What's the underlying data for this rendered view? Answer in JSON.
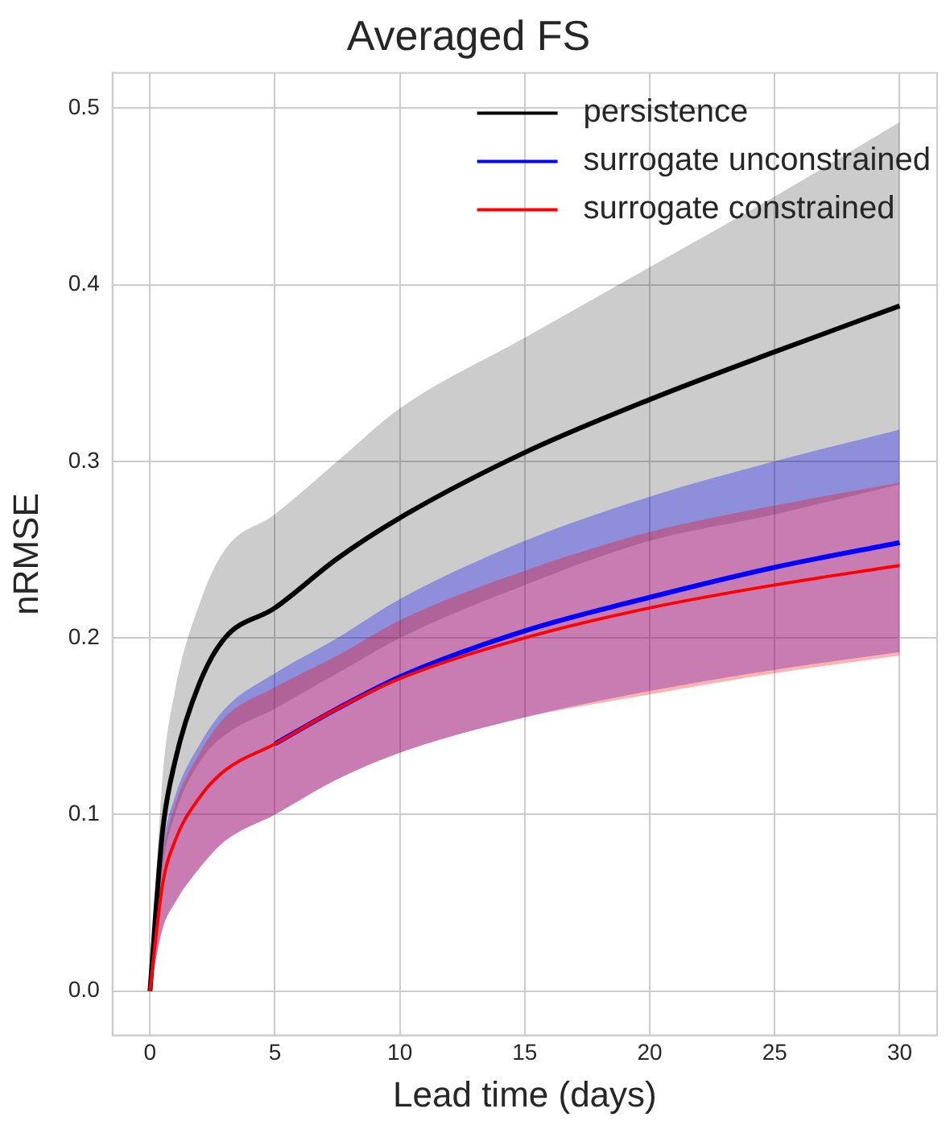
{
  "chart_data": {
    "type": "line",
    "title": "Averaged FS",
    "xlabel": "Lead time (days)",
    "ylabel": "nRMSE",
    "x": [
      0,
      0.5,
      1,
      2,
      3,
      5,
      7.5,
      10,
      15,
      20,
      25,
      30
    ],
    "series": [
      {
        "name": "persistence",
        "color": "#000000",
        "values": [
          0,
          0.09,
          0.13,
          0.175,
          0.2,
          0.217,
          0.245,
          0.268,
          0.305,
          0.335,
          0.362,
          0.388
        ],
        "lower": [
          0,
          0.07,
          0.1,
          0.13,
          0.145,
          0.16,
          0.18,
          0.2,
          0.23,
          0.255,
          0.27,
          0.287
        ],
        "upper": [
          0,
          0.12,
          0.17,
          0.22,
          0.25,
          0.27,
          0.3,
          0.33,
          0.37,
          0.41,
          0.45,
          0.492
        ]
      },
      {
        "name": "surrogate unconstrained",
        "color": "#0000ff",
        "values": [
          null,
          null,
          null,
          null,
          null,
          0.14,
          0.16,
          0.178,
          0.204,
          0.223,
          0.24,
          0.254
        ],
        "lower": [
          0,
          0.035,
          0.05,
          0.07,
          0.085,
          0.1,
          0.12,
          0.135,
          0.155,
          0.17,
          0.182,
          0.192
        ],
        "upper": [
          0,
          0.08,
          0.11,
          0.14,
          0.16,
          0.18,
          0.2,
          0.222,
          0.255,
          0.28,
          0.3,
          0.318
        ]
      },
      {
        "name": "surrogate constrained",
        "color": "#ff0000",
        "values": [
          0,
          0.06,
          0.085,
          0.11,
          0.125,
          0.14,
          0.16,
          0.177,
          0.2,
          0.217,
          0.23,
          0.241
        ],
        "lower": [
          0,
          0.035,
          0.05,
          0.07,
          0.085,
          0.1,
          0.12,
          0.135,
          0.155,
          0.168,
          0.18,
          0.19
        ],
        "upper": [
          0,
          0.075,
          0.105,
          0.135,
          0.155,
          0.172,
          0.19,
          0.21,
          0.238,
          0.26,
          0.275,
          0.288
        ]
      }
    ],
    "xlim": [
      -1.5,
      31.5
    ],
    "xticks": [
      0,
      5,
      10,
      15,
      20,
      25,
      30
    ],
    "ylim": [
      -0.025,
      0.52
    ],
    "yticks": [
      {
        "value": 0,
        "label": "0.0"
      },
      {
        "value": 0.1,
        "label": "0.1"
      },
      {
        "value": 0.2,
        "label": "0.2"
      },
      {
        "value": 0.3,
        "label": "0.3"
      },
      {
        "value": 0.4,
        "label": "0.4"
      },
      {
        "value": 0.5,
        "label": "0.5"
      }
    ],
    "grid": true,
    "legend": "top right",
    "marker": "none",
    "line_style": "solid"
  }
}
